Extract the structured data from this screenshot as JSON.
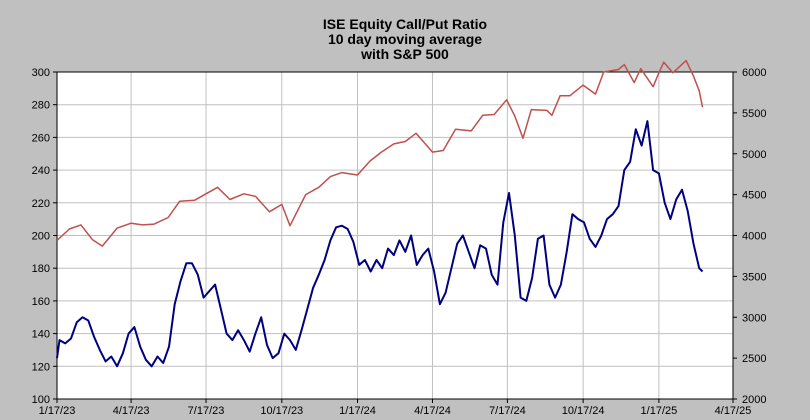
{
  "chart_data": {
    "type": "line",
    "title": "ISE  Equity Call/Put Ratio",
    "subtitle_lines": [
      "10 day moving average",
      "with S&P 500"
    ],
    "x_ticks": [
      "1/17/23",
      "4/17/23",
      "7/17/23",
      "10/17/23",
      "1/17/24",
      "4/17/24",
      "7/17/24",
      "10/17/24",
      "1/17/25",
      "4/17/25"
    ],
    "left_axis": {
      "ylim": [
        100,
        300
      ],
      "ticks": [
        100,
        120,
        140,
        160,
        180,
        200,
        220,
        240,
        260,
        280,
        300
      ]
    },
    "right_axis": {
      "ylim": [
        2000,
        6000
      ],
      "ticks": [
        2000,
        2500,
        3000,
        3500,
        4000,
        4500,
        5000,
        5500,
        6000
      ]
    },
    "grid": true,
    "background_color": "#c0c0c0",
    "plot_color": "#ffffff",
    "series": [
      {
        "axis": "left",
        "color": "#000080",
        "points": [
          [
            "1/17/23",
            125
          ],
          [
            "1/20/23",
            136
          ],
          [
            "1/27/23",
            134
          ],
          [
            "2/3/23",
            137
          ],
          [
            "2/10/23",
            147
          ],
          [
            "2/17/23",
            150
          ],
          [
            "2/24/23",
            148
          ],
          [
            "3/3/23",
            138
          ],
          [
            "3/10/23",
            130
          ],
          [
            "3/17/23",
            123
          ],
          [
            "3/24/23",
            126
          ],
          [
            "3/31/23",
            120
          ],
          [
            "4/7/23",
            128
          ],
          [
            "4/14/23",
            140
          ],
          [
            "4/21/23",
            144
          ],
          [
            "4/28/23",
            132
          ],
          [
            "5/5/23",
            124
          ],
          [
            "5/12/23",
            120
          ],
          [
            "5/19/23",
            126
          ],
          [
            "5/26/23",
            122
          ],
          [
            "6/2/23",
            132
          ],
          [
            "6/9/23",
            158
          ],
          [
            "6/16/23",
            172
          ],
          [
            "6/23/23",
            183
          ],
          [
            "6/30/23",
            183
          ],
          [
            "7/7/23",
            176
          ],
          [
            "7/14/23",
            162
          ],
          [
            "7/21/23",
            166
          ],
          [
            "7/28/23",
            170
          ],
          [
            "8/4/23",
            155
          ],
          [
            "8/11/23",
            140
          ],
          [
            "8/18/23",
            136
          ],
          [
            "8/25/23",
            142
          ],
          [
            "9/1/23",
            136
          ],
          [
            "9/8/23",
            129
          ],
          [
            "9/15/23",
            140
          ],
          [
            "9/22/23",
            150
          ],
          [
            "9/29/23",
            133
          ],
          [
            "10/6/23",
            125
          ],
          [
            "10/13/23",
            128
          ],
          [
            "10/20/23",
            140
          ],
          [
            "10/27/23",
            136
          ],
          [
            "11/3/23",
            130
          ],
          [
            "11/10/23",
            142
          ],
          [
            "11/17/23",
            155
          ],
          [
            "11/24/23",
            168
          ],
          [
            "12/1/23",
            176
          ],
          [
            "12/8/23",
            185
          ],
          [
            "12/15/23",
            197
          ],
          [
            "12/22/23",
            205
          ],
          [
            "12/29/23",
            206
          ],
          [
            "1/5/24",
            204
          ],
          [
            "1/12/24",
            196
          ],
          [
            "1/19/24",
            182
          ],
          [
            "1/26/24",
            185
          ],
          [
            "2/2/24",
            178
          ],
          [
            "2/9/24",
            185
          ],
          [
            "2/16/24",
            180
          ],
          [
            "2/23/24",
            192
          ],
          [
            "3/1/24",
            188
          ],
          [
            "3/8/24",
            197
          ],
          [
            "3/15/24",
            190
          ],
          [
            "3/22/24",
            200
          ],
          [
            "3/29/24",
            182
          ],
          [
            "4/5/24",
            188
          ],
          [
            "4/12/24",
            192
          ],
          [
            "4/19/24",
            178
          ],
          [
            "4/26/24",
            158
          ],
          [
            "5/3/24",
            165
          ],
          [
            "5/10/24",
            180
          ],
          [
            "5/17/24",
            195
          ],
          [
            "5/24/24",
            200
          ],
          [
            "5/31/24",
            190
          ],
          [
            "6/7/24",
            180
          ],
          [
            "6/14/24",
            194
          ],
          [
            "6/21/24",
            192
          ],
          [
            "6/28/24",
            176
          ],
          [
            "7/5/24",
            170
          ],
          [
            "7/12/24",
            208
          ],
          [
            "7/19/24",
            226
          ],
          [
            "7/26/24",
            200
          ],
          [
            "8/2/24",
            162
          ],
          [
            "8/9/24",
            160
          ],
          [
            "8/16/24",
            174
          ],
          [
            "8/23/24",
            198
          ],
          [
            "8/30/24",
            200
          ],
          [
            "9/6/24",
            170
          ],
          [
            "9/13/24",
            162
          ],
          [
            "9/20/24",
            170
          ],
          [
            "9/27/24",
            190
          ],
          [
            "10/4/24",
            213
          ],
          [
            "10/11/24",
            210
          ],
          [
            "10/18/24",
            208
          ],
          [
            "10/25/24",
            198
          ],
          [
            "11/1/24",
            193
          ],
          [
            "11/8/24",
            200
          ],
          [
            "11/15/24",
            210
          ],
          [
            "11/22/24",
            213
          ],
          [
            "11/29/24",
            218
          ],
          [
            "12/6/24",
            240
          ],
          [
            "12/13/24",
            245
          ],
          [
            "12/20/24",
            265
          ],
          [
            "12/27/24",
            255
          ],
          [
            "1/3/25",
            270
          ],
          [
            "1/10/25",
            240
          ],
          [
            "1/17/25",
            238
          ],
          [
            "1/24/25",
            220
          ],
          [
            "1/31/25",
            210
          ],
          [
            "2/7/25",
            222
          ],
          [
            "2/14/25",
            228
          ],
          [
            "2/21/25",
            215
          ],
          [
            "2/28/25",
            195
          ],
          [
            "3/7/25",
            180
          ],
          [
            "3/11/25",
            178
          ]
        ]
      },
      {
        "axis": "right",
        "color": "#c0504d",
        "points": [
          [
            "1/17/23",
            3940
          ],
          [
            "2/1/23",
            4080
          ],
          [
            "2/15/23",
            4130
          ],
          [
            "3/1/23",
            3950
          ],
          [
            "3/13/23",
            3870
          ],
          [
            "3/31/23",
            4090
          ],
          [
            "4/17/23",
            4150
          ],
          [
            "5/1/23",
            4130
          ],
          [
            "5/15/23",
            4140
          ],
          [
            "6/1/23",
            4220
          ],
          [
            "6/15/23",
            4420
          ],
          [
            "7/3/23",
            4430
          ],
          [
            "7/17/23",
            4510
          ],
          [
            "7/31/23",
            4590
          ],
          [
            "8/15/23",
            4440
          ],
          [
            "9/1/23",
            4510
          ],
          [
            "9/15/23",
            4480
          ],
          [
            "10/2/23",
            4290
          ],
          [
            "10/17/23",
            4380
          ],
          [
            "10/27/23",
            4120
          ],
          [
            "11/15/23",
            4500
          ],
          [
            "12/1/23",
            4590
          ],
          [
            "12/15/23",
            4720
          ],
          [
            "12/29/23",
            4770
          ],
          [
            "1/17/24",
            4740
          ],
          [
            "2/1/24",
            4910
          ],
          [
            "2/15/24",
            5020
          ],
          [
            "3/1/24",
            5120
          ],
          [
            "3/15/24",
            5150
          ],
          [
            "3/28/24",
            5250
          ],
          [
            "4/17/24",
            5020
          ],
          [
            "4/30/24",
            5040
          ],
          [
            "5/15/24",
            5300
          ],
          [
            "6/3/24",
            5280
          ],
          [
            "6/17/24",
            5470
          ],
          [
            "7/1/24",
            5480
          ],
          [
            "7/16/24",
            5660
          ],
          [
            "7/26/24",
            5460
          ],
          [
            "8/5/24",
            5190
          ],
          [
            "8/15/24",
            5540
          ],
          [
            "9/3/24",
            5530
          ],
          [
            "9/9/24",
            5470
          ],
          [
            "9/19/24",
            5710
          ],
          [
            "10/1/24",
            5710
          ],
          [
            "10/17/24",
            5840
          ],
          [
            "11/1/24",
            5730
          ],
          [
            "11/11/24",
            6000
          ],
          [
            "11/29/24",
            6030
          ],
          [
            "12/6/24",
            6090
          ],
          [
            "12/18/24",
            5870
          ],
          [
            "12/26/24",
            6040
          ],
          [
            "1/10/25",
            5820
          ],
          [
            "1/17/25",
            5990
          ],
          [
            "1/23/25",
            6120
          ],
          [
            "2/3/25",
            5990
          ],
          [
            "2/19/25",
            6140
          ],
          [
            "2/28/25",
            5950
          ],
          [
            "3/7/25",
            5770
          ],
          [
            "3/11/25",
            5570
          ]
        ]
      }
    ]
  }
}
